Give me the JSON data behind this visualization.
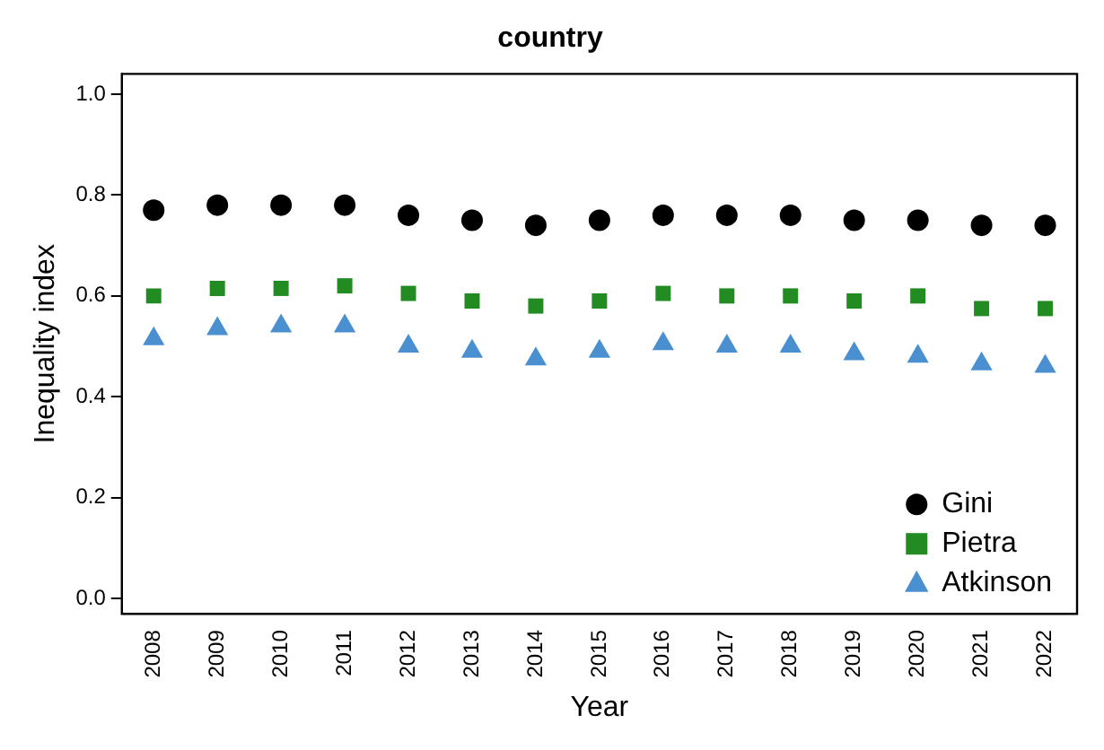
{
  "chart_data": {
    "type": "scatter",
    "title": "country",
    "xlabel": "Year",
    "ylabel": "Inequality index",
    "categories": [
      "2008",
      "2009",
      "2010",
      "2011",
      "2012",
      "2013",
      "2014",
      "2015",
      "2016",
      "2017",
      "2018",
      "2019",
      "2020",
      "2021",
      "2022"
    ],
    "series": [
      {
        "name": "Gini",
        "color": "#000000",
        "marker": "circle",
        "values": [
          0.77,
          0.78,
          0.78,
          0.78,
          0.76,
          0.75,
          0.74,
          0.75,
          0.76,
          0.76,
          0.76,
          0.75,
          0.75,
          0.74,
          0.74
        ]
      },
      {
        "name": "Pietra",
        "color": "#228b22",
        "marker": "square",
        "values": [
          0.6,
          0.615,
          0.615,
          0.62,
          0.605,
          0.59,
          0.58,
          0.59,
          0.605,
          0.6,
          0.6,
          0.59,
          0.6,
          0.575,
          0.575
        ]
      },
      {
        "name": "Atkinson",
        "color": "#4a90d0",
        "marker": "triangle",
        "values": [
          0.515,
          0.535,
          0.54,
          0.54,
          0.5,
          0.49,
          0.475,
          0.49,
          0.505,
          0.5,
          0.5,
          0.485,
          0.48,
          0.465,
          0.46
        ]
      }
    ],
    "ylim": [
      -0.03,
      1.04
    ],
    "yticks": [
      {
        "value": 0,
        "label": "0.0"
      },
      {
        "value": 0.2,
        "label": "0.2"
      },
      {
        "value": 0.4,
        "label": "0.4"
      },
      {
        "value": 0.6,
        "label": "0.6"
      },
      {
        "value": 0.8,
        "label": "0.8"
      },
      {
        "value": 1,
        "label": "1.0"
      }
    ],
    "grid": false,
    "legend": "bottom right"
  }
}
